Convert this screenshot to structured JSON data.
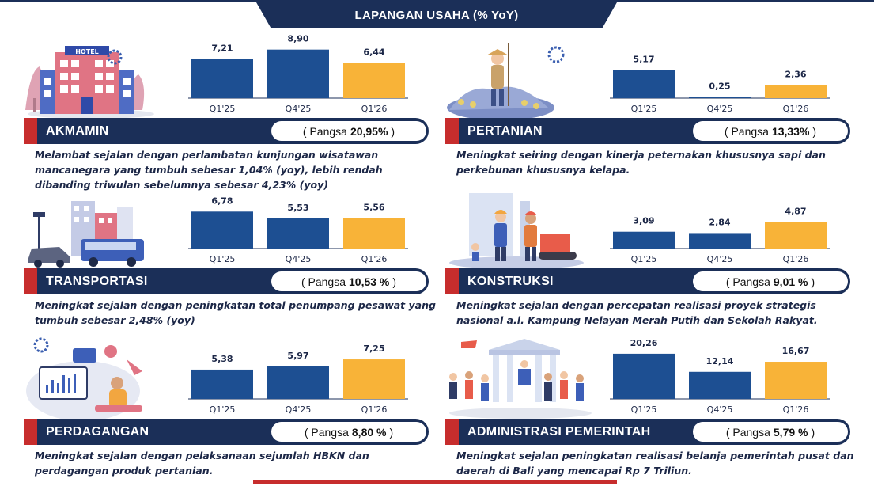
{
  "header": {
    "title": "LAPANGAN USAHA (% YoY)"
  },
  "colors": {
    "navy": "#1b2f58",
    "bar_blue": "#1d4f92",
    "bar_orange": "#f8b338",
    "accent_red": "#c72d2d"
  },
  "chart_data": [
    {
      "type": "bar",
      "sector": "AKMAMIN",
      "categories": [
        "Q1'25",
        "Q4'25",
        "Q1'26"
      ],
      "values": [
        7.21,
        8.9,
        6.44
      ],
      "value_labels": [
        "7,21",
        "8,90",
        "6,44"
      ],
      "ylim": [
        0,
        9
      ]
    },
    {
      "type": "bar",
      "sector": "PERTANIAN",
      "categories": [
        "Q1'25",
        "Q4'25",
        "Q1'26"
      ],
      "values": [
        5.17,
        0.25,
        2.36
      ],
      "value_labels": [
        "5,17",
        "0,25",
        "2,36"
      ],
      "ylim": [
        0,
        9
      ]
    },
    {
      "type": "bar",
      "sector": "TRANSPORTASI",
      "categories": [
        "Q1'25",
        "Q4'25",
        "Q1'26"
      ],
      "values": [
        6.78,
        5.53,
        5.56
      ],
      "value_labels": [
        "6,78",
        "5,53",
        "5,56"
      ],
      "ylim": [
        0,
        9
      ]
    },
    {
      "type": "bar",
      "sector": "KONSTRUKSI",
      "categories": [
        "Q1'25",
        "Q4'25",
        "Q1'26"
      ],
      "values": [
        3.09,
        2.84,
        4.87
      ],
      "value_labels": [
        "3,09",
        "2,84",
        "4,87"
      ],
      "ylim": [
        0,
        9
      ]
    },
    {
      "type": "bar",
      "sector": "PERDAGANGAN",
      "categories": [
        "Q1'25",
        "Q4'25",
        "Q1'26"
      ],
      "values": [
        5.38,
        5.97,
        7.25
      ],
      "value_labels": [
        "5,38",
        "5,97",
        "7,25"
      ],
      "ylim": [
        0,
        9
      ]
    },
    {
      "type": "bar",
      "sector": "ADMINISTRASI PEMERINTAH",
      "categories": [
        "Q1'25",
        "Q4'25",
        "Q1'26"
      ],
      "values": [
        20.26,
        12.14,
        16.67
      ],
      "value_labels": [
        "20,26",
        "12,14",
        "16,67"
      ],
      "ylim": [
        0,
        22
      ]
    }
  ],
  "panels": [
    {
      "name": "AKMAMIN",
      "pangsa_prefix": "( Pangsa",
      "pangsa_value": "20,95%",
      "pangsa_suffix": ")",
      "desc": "Melambat sejalan dengan perlambatan kunjungan wisatawan mancanegara yang tumbuh sebesar 1,04% (yoy), lebih rendah dibanding triwulan sebelumnya sebesar 4,23% (yoy)",
      "icon": "hotel-icon"
    },
    {
      "name": "PERTANIAN",
      "pangsa_prefix": "( Pangsa",
      "pangsa_value": "13,33%",
      "pangsa_suffix": ")",
      "desc": "Meningkat seiring dengan kinerja peternakan khususnya sapi dan perkebunan khususnya kelapa.",
      "icon": "farmer-icon"
    },
    {
      "name": "TRANSPORTASI",
      "pangsa_prefix": "( Pangsa",
      "pangsa_value": "10,53 %",
      "pangsa_suffix": ")",
      "desc": "Meningkat sejalan dengan peningkatan total penumpang pesawat yang tumbuh sebesar 2,48% (yoy)",
      "icon": "bus-icon"
    },
    {
      "name": "KONSTRUKSI",
      "pangsa_prefix": "( Pangsa",
      "pangsa_value": "9,01 %",
      "pangsa_suffix": ")",
      "desc": "Meningkat sejalan dengan percepatan realisasi proyek strategis nasional a.l. Kampung Nelayan Merah Putih dan Sekolah Rakyat.",
      "icon": "construction-icon"
    },
    {
      "name": "PERDAGANGAN",
      "pangsa_prefix": "( Pangsa",
      "pangsa_value": "8,80 %",
      "pangsa_suffix": ")",
      "desc": "Meningkat sejalan dengan pelaksanaan sejumlah HBKN dan perdagangan produk pertanian.",
      "icon": "trading-icon"
    },
    {
      "name": "ADMINISTRASI PEMERINTAH",
      "pangsa_prefix": "( Pangsa",
      "pangsa_value": "5,79 %",
      "pangsa_suffix": ")",
      "desc": "Meningkat sejalan peningkatan realisasi belanja pemerintah pusat dan daerah di Bali yang mencapai Rp 7 Triliun.",
      "icon": "government-icon"
    }
  ]
}
